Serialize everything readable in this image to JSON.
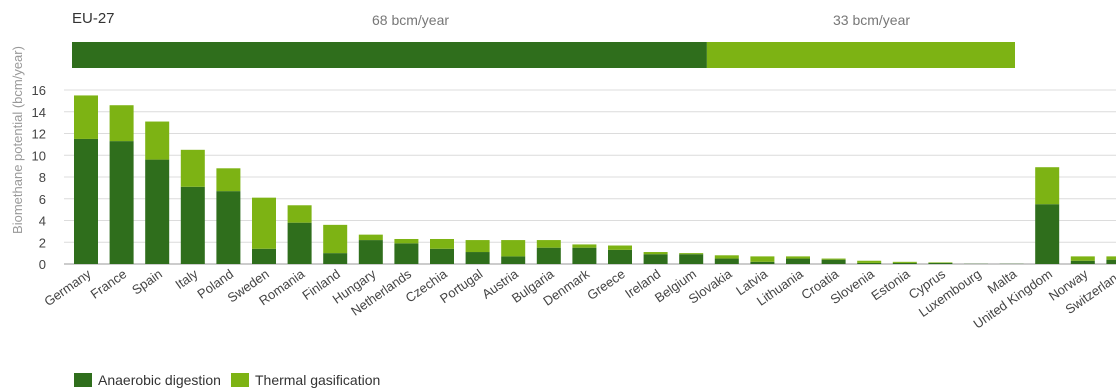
{
  "eu_bar": {
    "label": "EU-27",
    "anaerobic_digestion_label": "68 bcm/year",
    "thermal_gasification_label": "33 bcm/year",
    "anaerobic_digestion_value": 68,
    "thermal_gasification_value": 33
  },
  "chart_data": {
    "type": "bar",
    "stacked": true,
    "ylabel": "Biomethane potential (bcm/year)",
    "ylim": [
      0,
      16
    ],
    "yticks": [
      0,
      2,
      4,
      6,
      8,
      10,
      12,
      14,
      16
    ],
    "grid": true,
    "legend_position": "bottom-left",
    "categories": [
      "Germany",
      "France",
      "Spain",
      "Italy",
      "Poland",
      "Sweden",
      "Romania",
      "Finland",
      "Hungary",
      "Netherlands",
      "Czechia",
      "Portugal",
      "Austria",
      "Bulgaria",
      "Denmark",
      "Greece",
      "Ireland",
      "Belgium",
      "Slovakia",
      "Latvia",
      "Lithuania",
      "Croatia",
      "Slovenia",
      "Estonia",
      "Cyprus",
      "Luxembourg",
      "Malta",
      "United Kingdom",
      "Norway",
      "Switzerland"
    ],
    "series": [
      {
        "name": "Anaerobic digestion",
        "color": "#2f6e1c",
        "values": [
          11.5,
          11.3,
          9.6,
          7.1,
          6.7,
          1.4,
          3.8,
          1.0,
          2.2,
          1.9,
          1.4,
          1.1,
          0.7,
          1.5,
          1.5,
          1.3,
          0.9,
          0.9,
          0.5,
          0.2,
          0.5,
          0.4,
          0.1,
          0.1,
          0.1,
          0.02,
          0.02,
          5.5,
          0.3,
          0.4
        ]
      },
      {
        "name": "Thermal gasification",
        "color": "#7db314",
        "values": [
          4.0,
          3.3,
          3.5,
          3.4,
          2.1,
          4.7,
          1.6,
          2.6,
          0.5,
          0.4,
          0.9,
          1.1,
          1.5,
          0.7,
          0.3,
          0.4,
          0.2,
          0.1,
          0.3,
          0.5,
          0.2,
          0.1,
          0.2,
          0.1,
          0.05,
          0.0,
          0.0,
          3.4,
          0.4,
          0.3
        ]
      }
    ]
  },
  "legend": [
    {
      "label": "Anaerobic digestion",
      "color": "#2f6e1c"
    },
    {
      "label": "Thermal gasification",
      "color": "#7db314"
    }
  ]
}
